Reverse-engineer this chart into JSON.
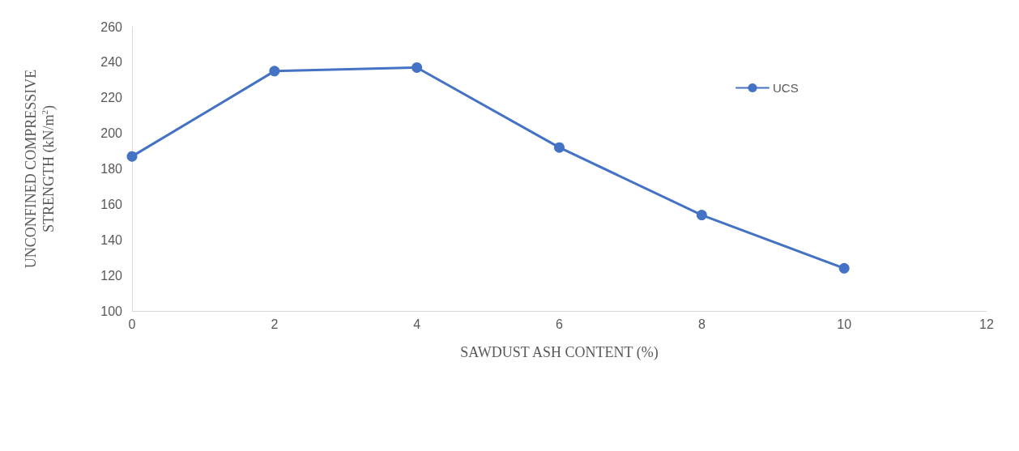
{
  "chart_data": {
    "type": "line",
    "xlabel": "SAWDUST ASH CONTENT (%)",
    "ylabel": "UNCONFINED COMPRESSIVE\nSTRENGTH (kN/m$^{2}$)",
    "x": [
      0,
      2,
      4,
      6,
      8,
      10
    ],
    "series": [
      {
        "name": "UCS",
        "color": "#4472c4",
        "values": [
          187,
          235,
          237,
          192,
          154,
          124
        ]
      }
    ],
    "xlim": [
      0,
      12
    ],
    "xticks": [
      0,
      2,
      4,
      6,
      8,
      10,
      12
    ],
    "ylim": [
      100,
      260
    ],
    "yticks": [
      100,
      120,
      140,
      160,
      180,
      200,
      220,
      240,
      260
    ],
    "grid": false,
    "legend": "top right",
    "marker": "circle",
    "line_style": "solid"
  }
}
